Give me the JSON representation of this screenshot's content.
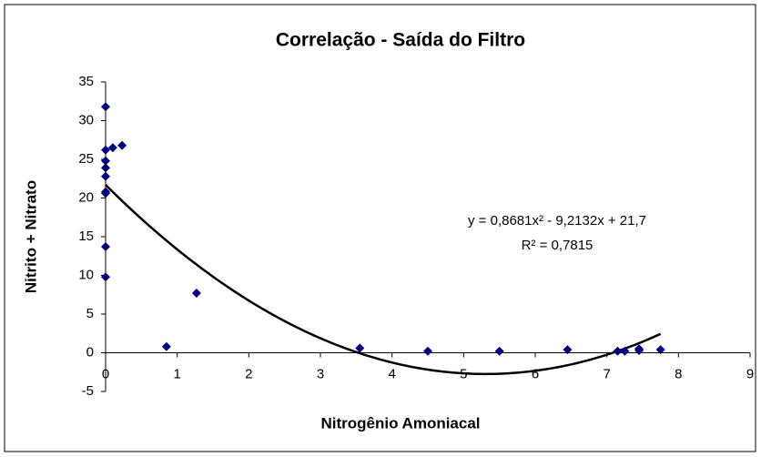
{
  "chart_data": {
    "type": "scatter",
    "title": "Correlação - Saída do Filtro",
    "x_label": "Nitrogênio Amoniacal",
    "y_label": "Nitrito + Nitrato",
    "color": "#000080",
    "x": [
      0,
      0,
      0,
      0,
      0,
      0,
      0,
      0,
      0,
      0.1,
      0.23,
      0.85,
      1.27,
      3.55,
      4.5,
      5.5,
      6.45,
      7.15,
      7.25,
      7.45,
      7.45,
      7.75
    ],
    "values": [
      31.8,
      26.2,
      24.8,
      23.9,
      22.8,
      20.8,
      20.6,
      13.7,
      9.8,
      26.5,
      26.8,
      0.8,
      7.7,
      0.6,
      0.2,
      0.2,
      0.4,
      0.2,
      0.2,
      0.3,
      0.5,
      0.4
    ],
    "xlim": [
      0,
      9
    ],
    "xticks": [
      0,
      1,
      2,
      3,
      4,
      5,
      6,
      7,
      8,
      9
    ],
    "ylim": [
      -5,
      35
    ],
    "yticks": [
      -5,
      0,
      5,
      10,
      15,
      20,
      25,
      30,
      35
    ],
    "trendline": {
      "coefficients": [
        0.8681,
        -9.2132,
        21.7
      ],
      "x_range": [
        0,
        7.75
      ],
      "equation": "y = 0,8681x² - 9,2132x + 21,7",
      "r_squared": "R² = 0,7815"
    }
  }
}
